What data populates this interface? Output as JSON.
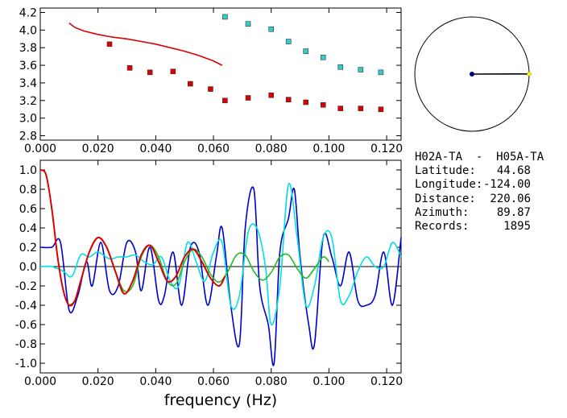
{
  "info": {
    "title": "H02A-TA  -  H05A-TA",
    "rows": [
      {
        "key": "Latitude:",
        "value": "44.68"
      },
      {
        "key": "Longitude:",
        "value": "-124.00"
      },
      {
        "key": "Distance:",
        "value": "220.06"
      },
      {
        "key": "Azimuth:",
        "value": "89.87"
      },
      {
        "key": "Records:",
        "value": "1895"
      }
    ]
  },
  "chart_data": [
    {
      "type": "scatter",
      "title": "",
      "xlabel": "",
      "ylabel": "",
      "xlim": [
        0,
        0.125
      ],
      "ylim": [
        2.75,
        4.25
      ],
      "x_ticks": [
        "0.000",
        "0.020",
        "0.040",
        "0.060",
        "0.080",
        "0.100",
        "0.120"
      ],
      "y_ticks": [
        "2.8",
        "3.0",
        "3.2",
        "3.4",
        "3.6",
        "3.8",
        "4.0",
        "4.2"
      ],
      "series": [
        {
          "kind": "line",
          "color": "#dd0000",
          "x": [
            0.01,
            0.012,
            0.015,
            0.02,
            0.025,
            0.03,
            0.035,
            0.04,
            0.045,
            0.05,
            0.055,
            0.06,
            0.063
          ],
          "y": [
            4.08,
            4.03,
            3.99,
            3.95,
            3.92,
            3.9,
            3.87,
            3.84,
            3.8,
            3.76,
            3.71,
            3.65,
            3.6
          ]
        },
        {
          "kind": "points",
          "color": "#dd0000",
          "x": [
            0.024,
            0.031,
            0.038,
            0.046,
            0.052,
            0.059,
            0.064,
            0.072,
            0.08,
            0.086,
            0.092,
            0.098,
            0.104,
            0.111,
            0.118
          ],
          "y": [
            3.84,
            3.57,
            3.52,
            3.53,
            3.39,
            3.33,
            3.2,
            3.23,
            3.26,
            3.21,
            3.18,
            3.15,
            3.11,
            3.11,
            3.1
          ]
        },
        {
          "kind": "points",
          "color": "#33cccc",
          "x": [
            0.064,
            0.072,
            0.08,
            0.086,
            0.092,
            0.098,
            0.104,
            0.111,
            0.118
          ],
          "y": [
            4.15,
            4.07,
            4.01,
            3.87,
            3.76,
            3.69,
            3.58,
            3.55,
            3.52
          ]
        }
      ]
    },
    {
      "type": "line",
      "title": "",
      "xlabel": "frequency (Hz)",
      "ylabel": "",
      "xlim": [
        0,
        0.125
      ],
      "ylim": [
        -1.1,
        1.1
      ],
      "x_ticks": [
        "0.000",
        "0.020",
        "0.040",
        "0.060",
        "0.080",
        "0.100",
        "0.120"
      ],
      "y_ticks": [
        "-1.0",
        "-0.8",
        "-0.6",
        "-0.4",
        "-0.2",
        "0.0",
        "0.2",
        "0.4",
        "0.6",
        "0.8",
        "1.0"
      ],
      "series": [
        {
          "color": "#0000cc",
          "x": [
            0.0,
            0.004,
            0.007,
            0.01,
            0.013,
            0.016,
            0.018,
            0.021,
            0.024,
            0.027,
            0.03,
            0.033,
            0.035,
            0.038,
            0.041,
            0.043,
            0.046,
            0.049,
            0.052,
            0.055,
            0.058,
            0.061,
            0.063,
            0.066,
            0.069,
            0.071,
            0.074,
            0.076,
            0.079,
            0.081,
            0.083,
            0.086,
            0.088,
            0.09,
            0.093,
            0.095,
            0.098,
            0.101,
            0.104,
            0.107,
            0.11,
            0.113,
            0.116,
            0.119,
            0.122,
            0.125
          ],
          "y": [
            0.2,
            0.2,
            0.25,
            -0.45,
            -0.3,
            0.05,
            -0.2,
            0.25,
            -0.25,
            -0.2,
            0.25,
            0.15,
            -0.25,
            0.2,
            -0.35,
            -0.3,
            0.15,
            -0.4,
            0.2,
            0.15,
            -0.4,
            0.1,
            0.4,
            -0.4,
            -0.8,
            0.4,
            0.8,
            -0.2,
            -0.6,
            -1.0,
            0.15,
            0.5,
            0.8,
            0.1,
            -0.6,
            -0.8,
            0.3,
            0.1,
            -0.2,
            0.15,
            -0.35,
            -0.4,
            -0.3,
            0.15,
            -0.4,
            0.3
          ]
        },
        {
          "color": "#00e0e0",
          "x": [
            0.0,
            0.004,
            0.008,
            0.011,
            0.014,
            0.017,
            0.02,
            0.024,
            0.027,
            0.03,
            0.033,
            0.036,
            0.039,
            0.042,
            0.045,
            0.048,
            0.051,
            0.054,
            0.057,
            0.06,
            0.063,
            0.066,
            0.069,
            0.072,
            0.075,
            0.078,
            0.08,
            0.083,
            0.086,
            0.089,
            0.092,
            0.095,
            0.098,
            0.101,
            0.104,
            0.107,
            0.11,
            0.113,
            0.116,
            0.119,
            0.122,
            0.125
          ],
          "y": [
            0.0,
            0.0,
            -0.05,
            -0.1,
            0.12,
            0.1,
            0.15,
            0.08,
            0.1,
            0.1,
            0.12,
            0.05,
            0.02,
            0.1,
            -0.15,
            -0.2,
            0.25,
            0.05,
            -0.15,
            0.15,
            0.25,
            -0.4,
            -0.3,
            0.35,
            0.4,
            0.0,
            -0.6,
            -0.2,
            0.85,
            0.3,
            -0.4,
            -0.2,
            0.3,
            0.3,
            -0.35,
            -0.3,
            -0.05,
            0.1,
            0.0,
            0.0,
            0.25,
            0.1
          ]
        },
        {
          "color": "#dd0000",
          "x": [
            0.0,
            0.002,
            0.004,
            0.006,
            0.008,
            0.01,
            0.012,
            0.014,
            0.017,
            0.02,
            0.023,
            0.026,
            0.029,
            0.032,
            0.035,
            0.038,
            0.041,
            0.044,
            0.047,
            0.05,
            0.053,
            0.056,
            0.059,
            0.062,
            0.064
          ],
          "y": [
            1.0,
            0.95,
            0.6,
            0.1,
            -0.25,
            -0.4,
            -0.35,
            -0.15,
            0.15,
            0.3,
            0.2,
            -0.05,
            -0.28,
            -0.15,
            0.12,
            0.22,
            0.05,
            -0.15,
            -0.1,
            0.1,
            0.18,
            0.05,
            -0.12,
            -0.2,
            -0.1
          ]
        },
        {
          "color": "#22bb22",
          "x": [
            0.01,
            0.012,
            0.014,
            0.017,
            0.02,
            0.023,
            0.026,
            0.029,
            0.032,
            0.035,
            0.038,
            0.041,
            0.044,
            0.047,
            0.05,
            0.053,
            0.056,
            0.059,
            0.062,
            0.065,
            0.068,
            0.071,
            0.074,
            0.077,
            0.08,
            0.083,
            0.086,
            0.089,
            0.092,
            0.095,
            0.098,
            0.1
          ],
          "y": [
            -0.4,
            -0.35,
            -0.15,
            0.15,
            0.3,
            0.2,
            -0.05,
            -0.25,
            -0.2,
            0.1,
            0.22,
            0.1,
            -0.15,
            -0.18,
            0.05,
            0.18,
            0.1,
            -0.08,
            -0.16,
            -0.05,
            0.12,
            0.12,
            -0.05,
            -0.14,
            -0.06,
            0.1,
            0.12,
            -0.02,
            -0.12,
            -0.02,
            0.1,
            0.05
          ]
        }
      ]
    },
    {
      "type": "scatter",
      "title": "",
      "xlabel": "",
      "ylabel": "",
      "note_kind": "azimuth-circle",
      "azimuth_deg": 89.87,
      "colors": {
        "circle": "#000000",
        "line": "#000000",
        "center": "#000080",
        "end": "#ffee00"
      }
    }
  ]
}
